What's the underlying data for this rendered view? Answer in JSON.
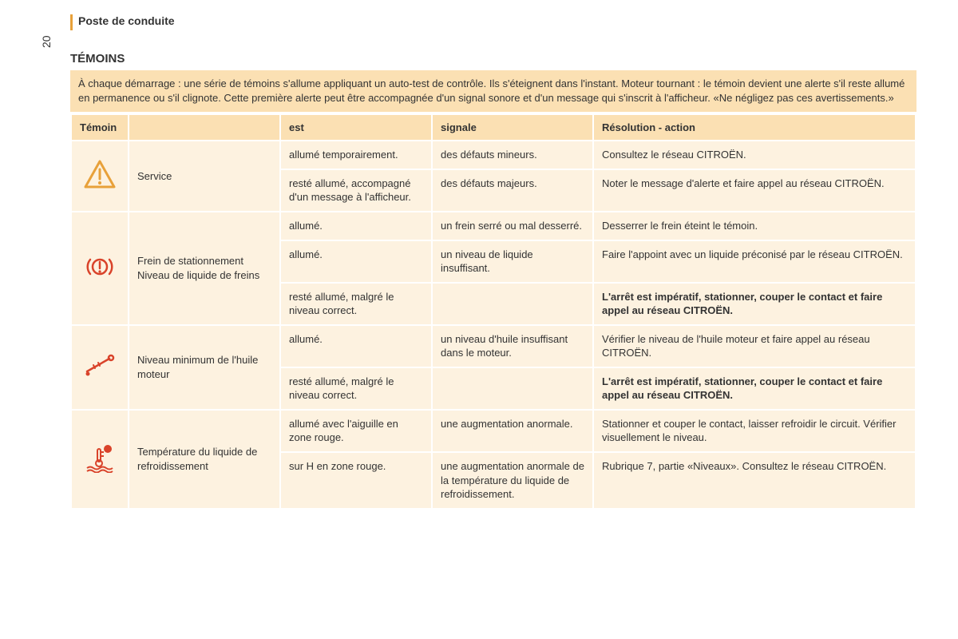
{
  "page_number": "20",
  "header": "Poste de conduite",
  "section": "TÉMOINS",
  "intro": "À chaque démarrage : une série de témoins s'allume appliquant un auto-test de contrôle. Ils s'éteignent dans l'instant. Moteur tournant : le témoin devient une alerte s'il reste allumé en permanence ou s'il clignote. Cette première alerte peut être accompagnée d'un signal sonore et d'un message qui s'inscrit à l'afficheur. «Ne négligez pas ces avertissements.»",
  "columns": {
    "c1": "Témoin",
    "c2": "",
    "c3": "est",
    "c4": "signale",
    "c5": "Résolution - action"
  },
  "groups": [
    {
      "icon": "warning-triangle",
      "icon_color": "#e8a13a",
      "name": "Service",
      "rows": [
        {
          "est": "allumé temporairement.",
          "signale": "des défauts mineurs.",
          "resolution": "Consultez le réseau CITROËN.",
          "bold": false
        },
        {
          "est": "resté allumé, accompagné d'un message à l'afficheur.",
          "signale": "des défauts majeurs.",
          "resolution": "Noter le message d'alerte et faire appel au réseau CITROËN.",
          "bold": false
        }
      ]
    },
    {
      "icon": "brake-circle",
      "icon_color": "#d9432a",
      "name": "Frein de stationnement Niveau de liquide de freins",
      "rows": [
        {
          "est": "allumé.",
          "signale": "un frein serré ou mal desserré.",
          "resolution": "Desserrer le frein éteint le témoin.",
          "bold": false
        },
        {
          "est": "allumé.",
          "signale": "un niveau de liquide insuffisant.",
          "resolution": "Faire l'appoint avec un liquide préconisé par le réseau CITROËN.",
          "bold": false
        },
        {
          "est": "resté allumé, malgré le niveau correct.",
          "signale": "",
          "resolution": "L'arrêt est impératif, stationner, couper le contact et faire appel au réseau CITROËN.",
          "bold": true
        }
      ]
    },
    {
      "icon": "oil-dipstick",
      "icon_color": "#d9432a",
      "name": "Niveau minimum de l'huile moteur",
      "rows": [
        {
          "est": "allumé.",
          "signale": "un niveau d'huile insuffisant dans le moteur.",
          "resolution": "Vérifier le niveau de l'huile moteur et faire appel au réseau CITROËN.",
          "bold": false
        },
        {
          "est": "resté allumé, malgré le niveau correct.",
          "signale": "",
          "resolution": "L'arrêt est impératif, stationner, couper le contact et faire appel au réseau CITROËN.",
          "bold": true
        }
      ]
    },
    {
      "icon": "coolant-temp",
      "icon_color": "#d9432a",
      "name": "Température du liquide de refroidissement",
      "rows": [
        {
          "est": "allumé avec l'aiguille en zone rouge.",
          "signale": "une augmentation anormale.",
          "resolution": "Stationner et couper le contact, laisser refroidir le circuit. Vérifier visuellement le niveau.",
          "bold": false
        },
        {
          "est": "sur H en zone rouge.",
          "signale": "une augmentation anormale de la température du liquide de refroidissement.",
          "resolution": "Rubrique 7, partie «Niveaux». Consultez le réseau CITROËN.",
          "bold": false
        }
      ]
    }
  ],
  "colors": {
    "accent": "#e8a13a",
    "header_bg": "#fbe0b3",
    "cell_bg": "#fdf2e0",
    "icon_red": "#d9432a"
  }
}
